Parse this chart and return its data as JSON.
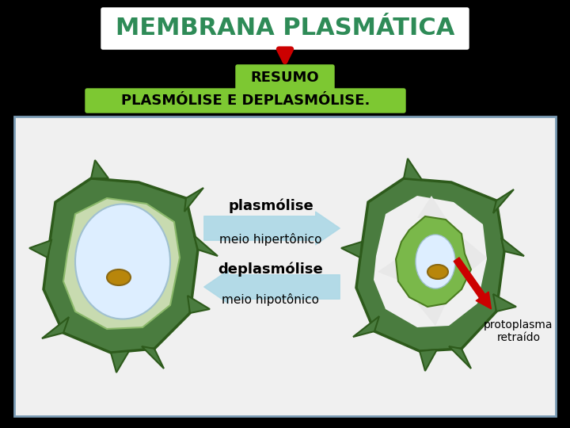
{
  "bg_color": "#000000",
  "title_text": "MEMBRANA PLASMÁTICA",
  "title_bg": "#ffffff",
  "title_color": "#2e8b57",
  "resumo_text": "RESUMO",
  "resumo_bg": "#7dc832",
  "resumo_color": "#000000",
  "subtitle_text": "PLASMÓLISE E DEPLASMÓLISE.",
  "subtitle_bg": "#7dc832",
  "subtitle_color": "#000000",
  "panel_bg": "#f0f0f0",
  "panel_border": "#7b9cb5",
  "label_plasmo": "plasmólise",
  "label_meio_hiper": "meio hipertônico",
  "label_deplas": "deplasmólise",
  "label_meio_hipo": "meio hipotônico",
  "label_proto": "protoplasma\nretraído",
  "arrow_right_color": "#add8e6",
  "arrow_left_color": "#add8e6",
  "red_arrow_color": "#cc0000",
  "figsize": [
    7.2,
    5.4
  ],
  "dpi": 100
}
